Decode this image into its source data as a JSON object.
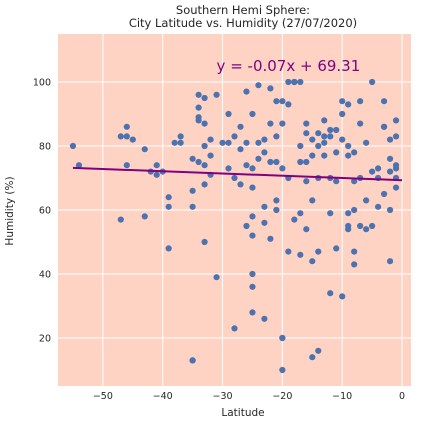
{
  "chart_data": {
    "type": "scatter",
    "title_line1": "Southern Hemi Sphere:",
    "title_line2": "City Latitude vs. Humidity (27/07/2020)",
    "xlabel": "Latitude",
    "ylabel": "Humidity (%)",
    "xlim": [
      -57.5,
      1.5
    ],
    "ylim": [
      5,
      115
    ],
    "xticks": [
      -50,
      -40,
      -30,
      -20,
      -10,
      0
    ],
    "yticks": [
      20,
      40,
      60,
      80,
      100
    ],
    "grid": true,
    "plot_background": "#ffd3c4",
    "grid_color": "#ffffff",
    "point_color": "#4c72b0",
    "line_color": "#800080",
    "equation_color": "#800080",
    "regression": {
      "equation": "y = -0.07x + 69.31",
      "slope": -0.07,
      "intercept": 69.31,
      "x_range": [
        -55,
        0
      ]
    },
    "points": [
      [
        -55,
        80
      ],
      [
        -54,
        74
      ],
      [
        -47,
        83
      ],
      [
        -47,
        57
      ],
      [
        -46,
        83
      ],
      [
        -46,
        86
      ],
      [
        -46,
        74
      ],
      [
        -45,
        82
      ],
      [
        -43,
        79
      ],
      [
        -43,
        58
      ],
      [
        -42,
        72
      ],
      [
        -41,
        74
      ],
      [
        -41,
        71
      ],
      [
        -40,
        72
      ],
      [
        -39,
        48
      ],
      [
        -39,
        61
      ],
      [
        -39,
        64
      ],
      [
        -38,
        81
      ],
      [
        -37,
        81
      ],
      [
        -37,
        83
      ],
      [
        -35,
        13
      ],
      [
        -35,
        13
      ],
      [
        -35,
        76
      ],
      [
        -35,
        66
      ],
      [
        -35,
        61
      ],
      [
        -34,
        96
      ],
      [
        -34,
        92
      ],
      [
        -34,
        89
      ],
      [
        -34,
        88
      ],
      [
        -34,
        75
      ],
      [
        -33,
        95
      ],
      [
        -33,
        87
      ],
      [
        -33,
        80
      ],
      [
        -33,
        74
      ],
      [
        -33,
        68
      ],
      [
        -33,
        50
      ],
      [
        -32,
        82
      ],
      [
        -32,
        77
      ],
      [
        -32,
        71
      ],
      [
        -31,
        96
      ],
      [
        -31,
        39
      ],
      [
        -30,
        81
      ],
      [
        -29,
        81
      ],
      [
        -29,
        90
      ],
      [
        -29,
        73
      ],
      [
        -28,
        83
      ],
      [
        -28,
        70
      ],
      [
        -28,
        23
      ],
      [
        -27,
        86
      ],
      [
        -27,
        79
      ],
      [
        -27,
        68
      ],
      [
        -26,
        97
      ],
      [
        -26,
        81
      ],
      [
        -26,
        74
      ],
      [
        -26,
        55
      ],
      [
        -25,
        90
      ],
      [
        -25,
        73
      ],
      [
        -25,
        67
      ],
      [
        -25,
        58
      ],
      [
        -25,
        52
      ],
      [
        -25,
        40
      ],
      [
        -25,
        36
      ],
      [
        -25,
        28
      ],
      [
        -24,
        99
      ],
      [
        -24,
        81
      ],
      [
        -24,
        76
      ],
      [
        -23,
        82
      ],
      [
        -23,
        78
      ],
      [
        -23,
        61
      ],
      [
        -23,
        56
      ],
      [
        -23,
        26
      ],
      [
        -22,
        98
      ],
      [
        -22,
        87
      ],
      [
        -22,
        75
      ],
      [
        -22,
        51
      ],
      [
        -21,
        94
      ],
      [
        -21,
        83
      ],
      [
        -21,
        75
      ],
      [
        -21,
        63
      ],
      [
        -21,
        60
      ],
      [
        -20,
        94
      ],
      [
        -20,
        87
      ],
      [
        -20,
        73
      ],
      [
        -20,
        20
      ],
      [
        -20,
        20
      ],
      [
        -20,
        10
      ],
      [
        -19,
        100
      ],
      [
        -19,
        93
      ],
      [
        -19,
        70
      ],
      [
        -19,
        47
      ],
      [
        -18,
        100
      ],
      [
        -18,
        100
      ],
      [
        -18,
        57
      ],
      [
        -17,
        100
      ],
      [
        -17,
        80
      ],
      [
        -17,
        75
      ],
      [
        -17,
        59
      ],
      [
        -17,
        46
      ],
      [
        -16,
        87
      ],
      [
        -16,
        84
      ],
      [
        -16,
        75
      ],
      [
        -16,
        69
      ],
      [
        -16,
        54
      ],
      [
        -15,
        82
      ],
      [
        -15,
        77
      ],
      [
        -15,
        63
      ],
      [
        -15,
        44
      ],
      [
        -15,
        14
      ],
      [
        -14,
        84
      ],
      [
        -14,
        80
      ],
      [
        -14,
        70
      ],
      [
        -14,
        47
      ],
      [
        -14,
        16
      ],
      [
        -13,
        88
      ],
      [
        -13,
        83
      ],
      [
        -13,
        81
      ],
      [
        -13,
        77
      ],
      [
        -12,
        85
      ],
      [
        -12,
        83
      ],
      [
        -12,
        70
      ],
      [
        -12,
        59
      ],
      [
        -12,
        34
      ],
      [
        -11,
        85
      ],
      [
        -11,
        78
      ],
      [
        -11,
        69
      ],
      [
        -11,
        48
      ],
      [
        -10,
        94
      ],
      [
        -10,
        90
      ],
      [
        -10,
        82
      ],
      [
        -10,
        33
      ],
      [
        -9,
        93
      ],
      [
        -9,
        80
      ],
      [
        -9,
        77
      ],
      [
        -9,
        59
      ],
      [
        -9,
        55
      ],
      [
        -9,
        54
      ],
      [
        -8,
        78
      ],
      [
        -8,
        69
      ],
      [
        -8,
        60
      ],
      [
        -8,
        47
      ],
      [
        -8,
        43
      ],
      [
        -7,
        94
      ],
      [
        -7,
        87
      ],
      [
        -7,
        70
      ],
      [
        -7,
        55
      ],
      [
        -6,
        81
      ],
      [
        -6,
        63
      ],
      [
        -6,
        54
      ],
      [
        -5,
        100
      ],
      [
        -5,
        72
      ],
      [
        -5,
        55
      ],
      [
        -4,
        73
      ],
      [
        -4,
        70
      ],
      [
        -4,
        61
      ],
      [
        -3,
        94
      ],
      [
        -3,
        86
      ],
      [
        -3,
        86
      ],
      [
        -3,
        65
      ],
      [
        -2,
        82
      ],
      [
        -2,
        76
      ],
      [
        -2,
        72
      ],
      [
        -2,
        60
      ],
      [
        -2,
        44
      ],
      [
        -1,
        88
      ],
      [
        -1,
        83
      ],
      [
        -1,
        74
      ],
      [
        -1,
        73
      ],
      [
        -1,
        70
      ],
      [
        -1,
        67
      ]
    ]
  }
}
